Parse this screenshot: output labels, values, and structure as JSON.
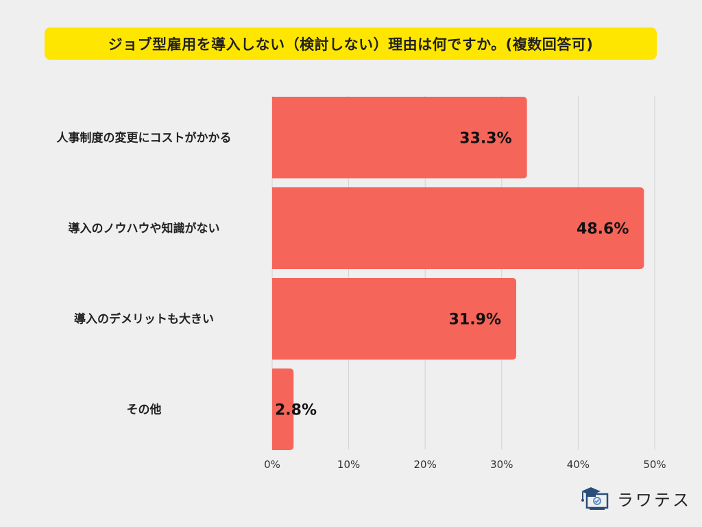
{
  "colors": {
    "bar": "#f6655a",
    "title_bg": "#ffe600",
    "grid": "#d2d2d2"
  },
  "chart_data": {
    "type": "bar",
    "orientation": "horizontal",
    "title": "ジョブ型雇用を導入しない（検討しない）理由は何ですか。(複数回答可)",
    "categories": [
      "人事制度の変更にコストがかかる",
      "導入のノウハウや知識がない",
      "導入のデメリットも大きい",
      "その他"
    ],
    "values": [
      33.3,
      48.6,
      31.9,
      2.8
    ],
    "value_labels": [
      "33.3%",
      "48.6%",
      "31.9%",
      "2.8%"
    ],
    "xlim": [
      0,
      50
    ],
    "xticks": [
      0,
      10,
      20,
      30,
      40,
      50
    ],
    "xtick_labels": [
      "0%",
      "10%",
      "20%",
      "30%",
      "40%",
      "50%"
    ],
    "xlabel": "",
    "ylabel": "",
    "grid": true
  },
  "logo": {
    "text": "ラワテス",
    "icon": "graduation-cap-monitor-icon"
  }
}
